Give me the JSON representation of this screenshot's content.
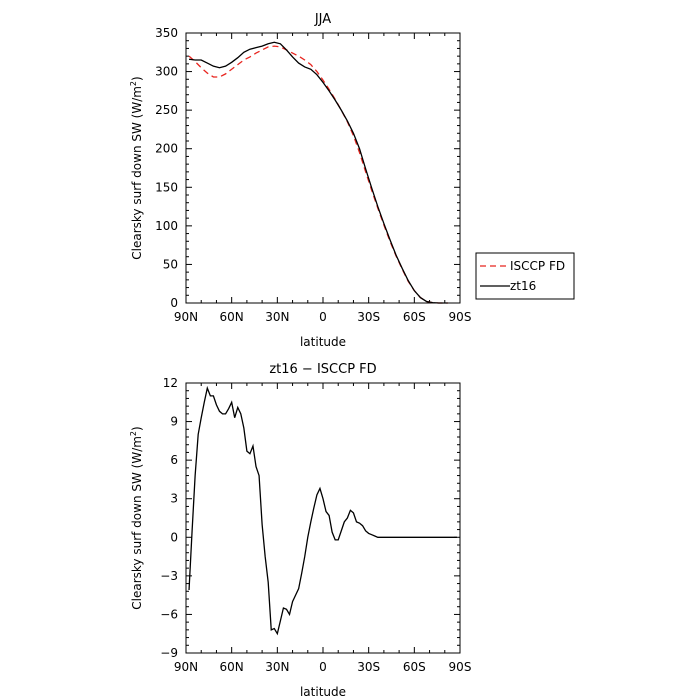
{
  "chart_data": [
    {
      "type": "line",
      "title": "JJA",
      "xlabel": "latitude",
      "ylabel": "Clearsky surf down SW (W/m",
      "ylabel_sup": "2",
      "ylabel_close": ")",
      "xlim": [
        90,
        -90
      ],
      "ylim": [
        0,
        350
      ],
      "x_ticks": [
        90,
        60,
        30,
        0,
        -30,
        -60,
        -90
      ],
      "x_tick_labels": [
        "90N",
        "60N",
        "30N",
        "0",
        "30S",
        "60S",
        "90S"
      ],
      "y_ticks": [
        0,
        50,
        100,
        150,
        200,
        250,
        300,
        350
      ],
      "y_tick_labels": [
        "0",
        "50",
        "100",
        "150",
        "200",
        "250",
        "300",
        "350"
      ],
      "grid": false,
      "legend": {
        "placement": "outside-right",
        "entries": [
          "ISCCP FD",
          "zt16"
        ]
      },
      "series": [
        {
          "name": "ISCCP FD",
          "color": "#e8251f",
          "dash": "dashed",
          "x": [
            88,
            84,
            80,
            76,
            72,
            68,
            64,
            60,
            56,
            52,
            48,
            44,
            40,
            36,
            32,
            28,
            24,
            20,
            16,
            12,
            8,
            4,
            0,
            -4,
            -8,
            -12,
            -16,
            -20,
            -24,
            -28,
            -32,
            -36,
            -40,
            -44,
            -48,
            -52,
            -56,
            -60,
            -64,
            -68,
            -72,
            -76,
            -80,
            -82
          ],
          "y": [
            320,
            313,
            305,
            298,
            293,
            293,
            297,
            303,
            309,
            315,
            319,
            324,
            328,
            332,
            333,
            332,
            328,
            324,
            320,
            315,
            309,
            300,
            289,
            277,
            264,
            250,
            235,
            217,
            195,
            170,
            146,
            123,
            101,
            80,
            61,
            44,
            28,
            16,
            7,
            2,
            0.5,
            0,
            0,
            0
          ]
        },
        {
          "name": "zt16",
          "color": "#000000",
          "dash": "solid",
          "x": [
            88,
            84,
            80,
            76,
            72,
            68,
            64,
            60,
            56,
            52,
            48,
            44,
            40,
            36,
            32,
            28,
            24,
            20,
            16,
            12,
            8,
            4,
            0,
            -4,
            -8,
            -12,
            -16,
            -20,
            -24,
            -28,
            -32,
            -36,
            -40,
            -44,
            -48,
            -52,
            -56,
            -60,
            -64,
            -68,
            -72,
            -76,
            -80,
            -82
          ],
          "y": [
            316,
            315,
            315,
            311,
            307,
            305,
            307,
            312,
            318,
            325,
            329,
            331,
            333,
            336,
            338,
            336,
            328,
            319,
            311,
            306,
            303,
            296,
            286,
            275,
            263,
            250,
            236,
            220,
            200,
            174,
            149,
            125,
            103,
            82,
            62,
            45,
            29,
            16,
            7,
            2,
            0.5,
            0,
            0,
            0
          ]
        }
      ]
    },
    {
      "type": "line",
      "title": "zt16 − ISCCP FD",
      "xlabel": "latitude",
      "ylabel": "Clearsky surf down SW (W/m",
      "ylabel_sup": "2",
      "ylabel_close": ")",
      "xlim": [
        90,
        -90
      ],
      "ylim": [
        -9,
        12
      ],
      "x_ticks": [
        90,
        60,
        30,
        0,
        -30,
        -60,
        -90
      ],
      "x_tick_labels": [
        "90N",
        "60N",
        "30N",
        "0",
        "30S",
        "60S",
        "90S"
      ],
      "y_ticks": [
        -9,
        -6,
        -3,
        0,
        3,
        6,
        9,
        12
      ],
      "y_tick_labels": [
        "−9",
        "−6",
        "−3",
        "0",
        "3",
        "6",
        "9",
        "12"
      ],
      "grid": false,
      "series": [
        {
          "color": "#000000",
          "dash": "solid",
          "x": [
            88,
            86,
            84,
            82,
            80,
            78,
            76,
            74,
            72,
            70,
            68,
            66,
            64,
            62,
            60,
            58,
            56,
            54,
            52,
            50,
            48,
            46,
            44,
            42,
            40,
            38,
            36,
            34,
            32,
            30,
            28,
            26,
            24,
            22,
            20,
            18,
            16,
            14,
            12,
            10,
            8,
            6,
            4,
            2,
            0,
            -2,
            -4,
            -6,
            -8,
            -10,
            -12,
            -14,
            -16,
            -18,
            -20,
            -22,
            -24,
            -26,
            -28,
            -30,
            -32,
            -34,
            -36,
            -38,
            -40,
            -42,
            -44,
            -46,
            -48,
            -50,
            -52,
            -54,
            -56,
            -58,
            -60,
            -62,
            -64,
            -66,
            -68,
            -70,
            -72,
            -74,
            -76,
            -78,
            -80,
            -82,
            -84,
            -86,
            -88
          ],
          "y": [
            -4.1,
            0.5,
            4.8,
            8.0,
            9.3,
            10.5,
            11.6,
            11.0,
            11.0,
            10.3,
            9.8,
            9.6,
            9.6,
            10.0,
            10.5,
            9.3,
            10.1,
            9.6,
            8.5,
            6.7,
            6.5,
            7.1,
            5.5,
            4.8,
            1.0,
            -1.5,
            -3.5,
            -7.2,
            -7.1,
            -7.5,
            -6.5,
            -5.5,
            -5.6,
            -6.0,
            -5.0,
            -4.5,
            -4.0,
            -2.8,
            -1.5,
            0.0,
            1.2,
            2.3,
            3.3,
            3.8,
            3.0,
            2.0,
            1.7,
            0.4,
            -0.2,
            -0.2,
            0.5,
            1.2,
            1.5,
            2.1,
            1.9,
            1.2,
            1.1,
            0.9,
            0.5,
            0.3,
            0.2,
            0.1,
            0.0,
            0.0,
            0.0,
            0.0,
            0.0,
            0.0,
            0.0,
            0.0,
            0.0,
            0.0,
            0.0,
            0.0,
            0.0,
            0.0,
            0.0,
            0.0,
            0.0,
            0.0,
            0.0,
            0.0,
            0.0,
            0.0,
            0.0,
            0.0,
            0.0,
            0.0,
            0.0
          ]
        }
      ]
    }
  ]
}
